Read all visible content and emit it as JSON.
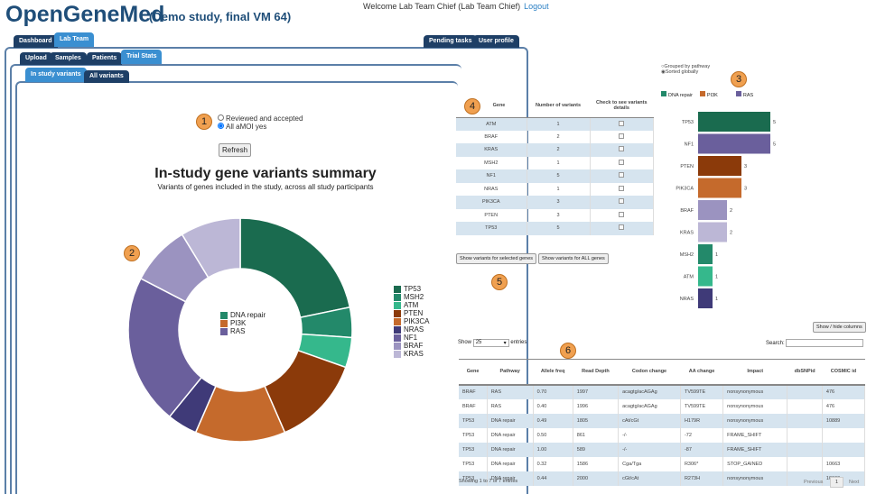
{
  "header": {
    "logo": "OpenGeneMed",
    "study": "(Demo study, final VM 64)",
    "welcome": "Welcome Lab Team Chief  (Lab Team Chief)",
    "logout": "Logout"
  },
  "tabs_main": [
    "Dashboard",
    "Lab Team"
  ],
  "tabs_right": [
    "Pending tasks",
    "User profile"
  ],
  "tabs_sub": [
    "Upload",
    "Samples",
    "Patients",
    "Trial Stats"
  ],
  "tabs_variants": [
    "In study variants",
    "All variants"
  ],
  "filter": {
    "options": [
      "Reviewed and accepted",
      "All aMOI yes"
    ],
    "selected": 1,
    "refresh": "Refresh"
  },
  "badges": [
    "1",
    "2",
    "3",
    "4",
    "5",
    "6"
  ],
  "chart_data": [
    {
      "type": "pie",
      "title": "In-study gene variants summary",
      "subtitle": "Variants of genes included in the study, across all study participants",
      "categories": [
        "TP53",
        "MSH2",
        "ATM",
        "PTEN",
        "PIK3CA",
        "NRAS",
        "NF1",
        "BRAF",
        "KRAS"
      ],
      "values": [
        5,
        1,
        1,
        3,
        3,
        1,
        5,
        2,
        2
      ],
      "colors": [
        "#1a6b4f",
        "#23896a",
        "#35b88c",
        "#8b3a0a",
        "#c56a2c",
        "#3f3a78",
        "#6a5f9c",
        "#9b93c0",
        "#bcb7d6"
      ],
      "pathway_legend": [
        {
          "name": "DNA repair",
          "color": "#23896a"
        },
        {
          "name": "PI3K",
          "color": "#c56a2c"
        },
        {
          "name": "RAS",
          "color": "#6a5f9c"
        }
      ]
    },
    {
      "type": "bar",
      "orientation": "horizontal",
      "categories": [
        "TP53",
        "NF1",
        "PTEN",
        "PIK3CA",
        "BRAF",
        "KRAS",
        "MSH2",
        "ATM",
        "NRAS"
      ],
      "values": [
        5,
        5,
        3,
        3,
        2,
        2,
        1,
        1,
        1
      ],
      "colors": [
        "#1a6b4f",
        "#6a5f9c",
        "#8b3a0a",
        "#c56a2c",
        "#9b93c0",
        "#bcb7d6",
        "#23896a",
        "#35b88c",
        "#3f3a78"
      ],
      "legend": [
        {
          "name": "DNA repair",
          "color": "#23896a"
        },
        {
          "name": "PI3K",
          "color": "#c56a2c"
        },
        {
          "name": "RAS",
          "color": "#6a5f9c"
        }
      ],
      "sort_options": [
        "Grouped by pathway",
        "Sorted globally"
      ],
      "sort_selected": 1
    }
  ],
  "gene_table": {
    "headers": [
      "Gene",
      "Number of variants",
      "Check to see variants details"
    ],
    "rows": [
      [
        "ATM",
        "1"
      ],
      [
        "BRAF",
        "2"
      ],
      [
        "KRAS",
        "2"
      ],
      [
        "MSH2",
        "1"
      ],
      [
        "NF1",
        "5"
      ],
      [
        "NRAS",
        "1"
      ],
      [
        "PIK3CA",
        "3"
      ],
      [
        "PTEN",
        "3"
      ],
      [
        "TP53",
        "5"
      ]
    ],
    "btn_selected": "Show variants for selected genes",
    "btn_all": "Show variants for ALL genes"
  },
  "variants": {
    "show": "Show",
    "entries_value": "25",
    "entries": "entries",
    "search": "Search:",
    "showhide": "Show / hide columns",
    "headers": [
      "Gene",
      "Pathway",
      "Allele freq",
      "Read Depth",
      "Codon change",
      "AA change",
      "Impact",
      "dbSNPid",
      "COSMIC id"
    ],
    "rows": [
      [
        "BRAF",
        "RAS",
        "0.70",
        "1997",
        "acagtg/acAGAg",
        "TV599TE",
        "nonsynonymous",
        "",
        "476"
      ],
      [
        "BRAF",
        "RAS",
        "0.40",
        "1996",
        "acagtg/acAGAg",
        "TV599TE",
        "nonsynonymous",
        "",
        "476"
      ],
      [
        "TP53",
        "DNA repair",
        "0.49",
        "1805",
        "cAt/cGt",
        "H179R",
        "nonsynonymous",
        "",
        "10889"
      ],
      [
        "TP53",
        "DNA repair",
        "0.50",
        "861",
        "-/-",
        "-72",
        "FRAME_SHIFT",
        "",
        ""
      ],
      [
        "TP53",
        "DNA repair",
        "1.00",
        "589",
        "-/-",
        "-87",
        "FRAME_SHIFT",
        "",
        ""
      ],
      [
        "TP53",
        "DNA repair",
        "0.32",
        "1586",
        "Cga/Tga",
        "R306*",
        "STOP_GAINED",
        "",
        "10663"
      ],
      [
        "TP53",
        "DNA repair",
        "0.44",
        "2000",
        "cGt/cAt",
        "R273H",
        "nonsynonymous",
        "",
        "10660"
      ]
    ],
    "info": "Showing 1 to 7 of 7 entries",
    "prev": "Previous",
    "page": "1",
    "next": "Next"
  }
}
